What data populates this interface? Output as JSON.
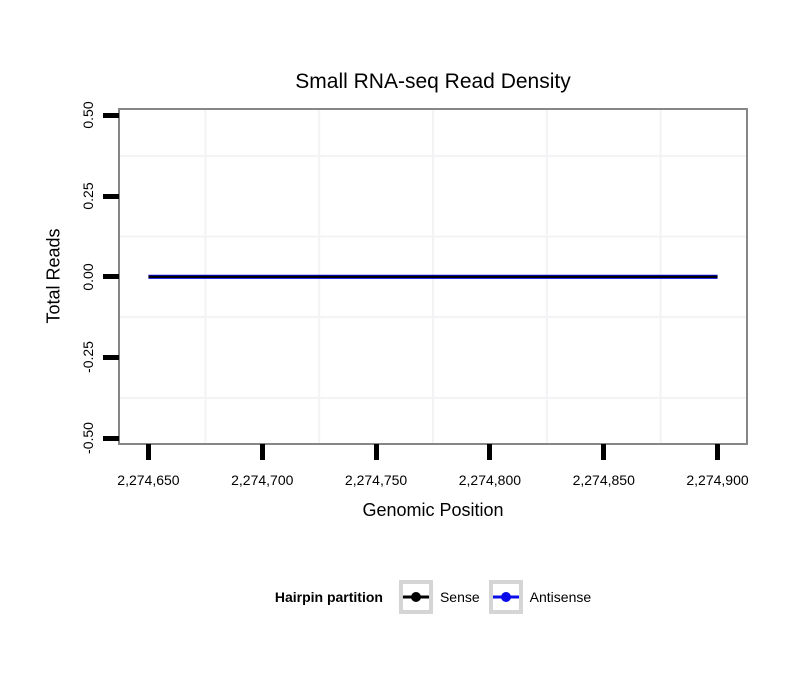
{
  "chart_data": {
    "type": "line",
    "title": "Small RNA-seq Read Density",
    "xlabel": "Genomic Position",
    "ylabel": "Total Reads",
    "xlim": [
      2274637.5,
      2274912.5
    ],
    "ylim": [
      -0.515,
      0.517
    ],
    "x_ticks": [
      {
        "value": 2274650,
        "label": "2,274,650"
      },
      {
        "value": 2274700,
        "label": "2,274,700"
      },
      {
        "value": 2274750,
        "label": "2,274,750"
      },
      {
        "value": 2274800,
        "label": "2,274,800"
      },
      {
        "value": 2274850,
        "label": "2,274,850"
      },
      {
        "value": 2274900,
        "label": "2,274,900"
      }
    ],
    "y_ticks": [
      {
        "value": 0.5,
        "label": "0.50"
      },
      {
        "value": 0.25,
        "label": "0.25"
      },
      {
        "value": 0.0,
        "label": "0.00"
      },
      {
        "value": -0.25,
        "label": "-0.25"
      },
      {
        "value": -0.5,
        "label": "-0.50"
      }
    ],
    "layout": {
      "grid": "minor-only",
      "legend_position": "bottom"
    },
    "series": [
      {
        "name": "Sense",
        "color": "#000000",
        "line_width": 2.4,
        "x": [
          2274650,
          2274900
        ],
        "y": [
          0,
          0
        ]
      },
      {
        "name": "Antisense",
        "color": "#0b0bea",
        "line_width": 4.2,
        "x": [
          2274650,
          2274900
        ],
        "y": [
          0,
          0
        ]
      }
    ]
  },
  "legend": {
    "title": "Hairpin partition",
    "items": [
      {
        "label": "Sense",
        "color": "#000000"
      },
      {
        "label": "Antisense",
        "color": "#0b0bea"
      }
    ]
  },
  "colors": {
    "panel_border": "#868686",
    "grid_minor": "#f3f3f5",
    "tick": "#000000",
    "background": "#ffffff",
    "text": "#000000"
  }
}
